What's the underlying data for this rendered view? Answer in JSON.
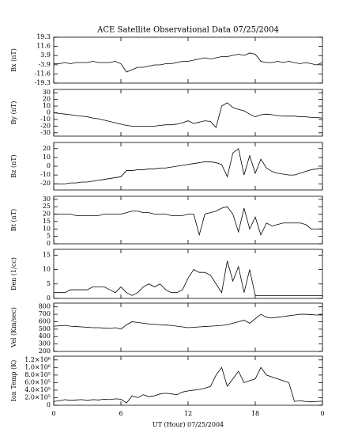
{
  "chart_data": [
    {
      "type": "line",
      "title": "ACE Satellite Observational Data   07/25/2004",
      "ylabel": "Bx (nT)",
      "color": "#000000",
      "x": [
        0,
        0.5,
        1,
        1.5,
        2,
        2.5,
        3,
        3.5,
        4,
        4.5,
        5,
        5.5,
        6,
        6.5,
        7,
        7.5,
        8,
        8.5,
        9,
        9.5,
        10,
        10.5,
        11,
        11.5,
        12,
        12.5,
        13,
        13.5,
        14,
        14.5,
        15,
        15.5,
        16,
        16.5,
        17,
        17.5,
        18,
        18.5,
        19,
        19.5,
        20,
        20.5,
        21,
        21.5,
        22,
        22.5,
        23,
        23.5,
        24
      ],
      "values": [
        -3,
        -3,
        -2,
        -3,
        -2,
        -2,
        -2,
        -1,
        -2,
        -2,
        -2,
        -1,
        -3,
        -10,
        -8,
        -6,
        -6,
        -5,
        -4,
        -4,
        -3,
        -3,
        -2,
        -1,
        -1,
        0,
        1,
        2,
        1,
        2,
        3,
        3,
        4,
        5,
        4,
        6,
        5,
        -1,
        -2,
        -2,
        -1,
        -2,
        -1,
        -2,
        -3,
        -2,
        -3,
        -4,
        -2
      ],
      "xlim": [
        0,
        24
      ],
      "ylim": [
        -19.3,
        19.3
      ],
      "yticks": [
        -19.3,
        -11.6,
        -3.9,
        3.9,
        11.6,
        19.3
      ]
    },
    {
      "type": "line",
      "ylabel": "By (nT)",
      "color": "#000000",
      "x": [
        0,
        0.5,
        1,
        1.5,
        2,
        2.5,
        3,
        3.5,
        4,
        4.5,
        5,
        5.5,
        6,
        6.5,
        7,
        7.5,
        8,
        8.5,
        9,
        9.5,
        10,
        10.5,
        11,
        11.5,
        12,
        12.5,
        13,
        13.5,
        14,
        14.5,
        15,
        15.5,
        16,
        16.5,
        17,
        17.5,
        18,
        18.5,
        19,
        19.5,
        20,
        20.5,
        21,
        21.5,
        22,
        22.5,
        23,
        23.5,
        24
      ],
      "values": [
        0,
        -1,
        -2,
        -3,
        -4,
        -5,
        -6,
        -8,
        -9,
        -11,
        -13,
        -15,
        -17,
        -19,
        -20,
        -20,
        -20,
        -20,
        -20,
        -19,
        -18,
        -18,
        -17,
        -15,
        -12,
        -16,
        -14,
        -12,
        -13,
        -22,
        10,
        15,
        8,
        5,
        3,
        -2,
        -6,
        -3,
        -2,
        -3,
        -4,
        -5,
        -5,
        -5,
        -6,
        -6,
        -7,
        -7,
        -8
      ],
      "xlim": [
        0,
        24
      ],
      "ylim": [
        -35,
        35
      ],
      "yticks": [
        -30,
        -20,
        -10,
        0,
        10,
        20,
        30
      ]
    },
    {
      "type": "line",
      "ylabel": "Bz (nT)",
      "color": "#000000",
      "x": [
        0,
        0.5,
        1,
        1.5,
        2,
        2.5,
        3,
        3.5,
        4,
        4.5,
        5,
        5.5,
        6,
        6.5,
        7,
        7.5,
        8,
        8.5,
        9,
        9.5,
        10,
        10.5,
        11,
        11.5,
        12,
        12.5,
        13,
        13.5,
        14,
        14.5,
        15,
        15.5,
        16,
        16.5,
        17,
        17.5,
        18,
        18.5,
        19,
        19.5,
        20,
        20.5,
        21,
        21.5,
        22,
        22.5,
        23,
        23.5,
        24
      ],
      "values": [
        -20,
        -20,
        -20,
        -19,
        -19,
        -18,
        -18,
        -17,
        -16,
        -15,
        -14,
        -13,
        -12,
        -5,
        -5,
        -4,
        -4,
        -3,
        -3,
        -2,
        -2,
        -1,
        0,
        1,
        2,
        3,
        4,
        5,
        5,
        4,
        2,
        -12,
        15,
        20,
        -10,
        12,
        -8,
        8,
        -2,
        -6,
        -8,
        -9,
        -10,
        -10,
        -8,
        -6,
        -4,
        -3,
        -2
      ],
      "xlim": [
        0,
        24
      ],
      "ylim": [
        -27,
        27
      ],
      "yticks": [
        -20,
        -10,
        0,
        10,
        20
      ]
    },
    {
      "type": "line",
      "ylabel": "Bt (nT)",
      "color": "#000000",
      "x": [
        0,
        0.5,
        1,
        1.5,
        2,
        2.5,
        3,
        3.5,
        4,
        4.5,
        5,
        5.5,
        6,
        6.5,
        7,
        7.5,
        8,
        8.5,
        9,
        9.5,
        10,
        10.5,
        11,
        11.5,
        12,
        12.5,
        13,
        13.5,
        14,
        14.5,
        15,
        15.5,
        16,
        16.5,
        17,
        17.5,
        18,
        18.5,
        19,
        19.5,
        20,
        20.5,
        21,
        21.5,
        22,
        22.5,
        23,
        23.5,
        24
      ],
      "values": [
        20,
        20,
        20,
        20,
        19,
        19,
        19,
        19,
        19,
        20,
        20,
        20,
        20,
        21,
        22,
        22,
        21,
        21,
        20,
        20,
        20,
        19,
        19,
        19,
        20,
        20,
        6,
        20,
        21,
        22,
        24,
        25,
        20,
        8,
        24,
        10,
        18,
        6,
        14,
        12,
        13,
        14,
        14,
        14,
        14,
        13,
        10,
        10,
        10
      ],
      "xlim": [
        0,
        24
      ],
      "ylim": [
        0,
        32
      ],
      "yticks": [
        0,
        5,
        10,
        15,
        20,
        25,
        30
      ]
    },
    {
      "type": "line",
      "ylabel": "Den (1/cc)",
      "color": "#000000",
      "x": [
        0,
        0.5,
        1,
        1.5,
        2,
        2.5,
        3,
        3.5,
        4,
        4.5,
        5,
        5.5,
        6,
        6.5,
        7,
        7.5,
        8,
        8.5,
        9,
        9.5,
        10,
        10.5,
        11,
        11.5,
        12,
        12.5,
        13,
        13.5,
        14,
        14.5,
        15,
        15.5,
        16,
        16.5,
        17,
        17.5,
        18,
        18.5,
        19,
        19.5,
        20,
        20.5,
        21,
        21.5,
        22,
        22.5,
        23,
        23.5,
        24
      ],
      "values": [
        2,
        2,
        2,
        3,
        3,
        3,
        3,
        4,
        4,
        4,
        3,
        2,
        4,
        2,
        1,
        2,
        4,
        5,
        4,
        5,
        3,
        2,
        2,
        3,
        7,
        10,
        9,
        9,
        8,
        5,
        2,
        13,
        6,
        11,
        2,
        10,
        1,
        1,
        1,
        1,
        1,
        1,
        1,
        1,
        1,
        1,
        1,
        1,
        1
      ],
      "xlim": [
        0,
        24
      ],
      "ylim": [
        0,
        17
      ],
      "yticks": [
        0,
        5,
        10,
        15
      ]
    },
    {
      "type": "line",
      "ylabel": "Vel (Km/sec)",
      "color": "#000000",
      "x": [
        0,
        0.5,
        1,
        1.5,
        2,
        2.5,
        3,
        3.5,
        4,
        4.5,
        5,
        5.5,
        6,
        6.5,
        7,
        7.5,
        8,
        8.5,
        9,
        9.5,
        10,
        10.5,
        11,
        11.5,
        12,
        12.5,
        13,
        13.5,
        14,
        14.5,
        15,
        15.5,
        16,
        16.5,
        17,
        17.5,
        18,
        18.5,
        19,
        19.5,
        20,
        20.5,
        21,
        21.5,
        22,
        22.5,
        23,
        23.5,
        24
      ],
      "values": [
        540,
        545,
        550,
        540,
        535,
        530,
        525,
        520,
        520,
        515,
        510,
        520,
        500,
        560,
        600,
        590,
        580,
        570,
        565,
        560,
        555,
        550,
        540,
        530,
        520,
        525,
        530,
        535,
        540,
        545,
        550,
        560,
        580,
        600,
        620,
        580,
        640,
        700,
        660,
        650,
        660,
        670,
        680,
        690,
        700,
        700,
        695,
        690,
        690
      ],
      "xlim": [
        0,
        24
      ],
      "ylim": [
        200,
        850
      ],
      "yticks": [
        200,
        300,
        400,
        500,
        600,
        700,
        800
      ]
    },
    {
      "type": "line",
      "ylabel": "Ion Temp (K)",
      "xlabel": "UT (Hour)   07/25/2004",
      "color": "#000000",
      "x": [
        0,
        0.5,
        1,
        1.5,
        2,
        2.5,
        3,
        3.5,
        4,
        4.5,
        5,
        5.5,
        6,
        6.5,
        7,
        7.5,
        8,
        8.5,
        9,
        9.5,
        10,
        10.5,
        11,
        11.5,
        12,
        12.5,
        13,
        13.5,
        14,
        14.5,
        15,
        15.5,
        16,
        16.5,
        17,
        17.5,
        18,
        18.5,
        19,
        19.5,
        20,
        20.5,
        21,
        21.5,
        22,
        22.5,
        23,
        23.5,
        24
      ],
      "values": [
        100000,
        120000,
        150000,
        130000,
        140000,
        150000,
        130000,
        150000,
        140000,
        160000,
        150000,
        170000,
        160000,
        60000,
        250000,
        200000,
        280000,
        230000,
        250000,
        300000,
        320000,
        300000,
        280000,
        350000,
        380000,
        400000,
        420000,
        450000,
        500000,
        800000,
        1000000,
        500000,
        700000,
        900000,
        600000,
        650000,
        700000,
        1000000,
        800000,
        750000,
        700000,
        650000,
        600000,
        100000,
        120000,
        100000,
        90000,
        100000,
        110000
      ],
      "xlim": [
        0,
        24
      ],
      "ylim": [
        0,
        1300000
      ],
      "yticks": [
        0,
        {
          "value": 200000,
          "label": "2.0×10⁵"
        },
        {
          "value": 400000,
          "label": "4.0×10⁵"
        },
        {
          "value": 600000,
          "label": "6.0×10⁵"
        },
        {
          "value": 800000,
          "label": "8.0×10⁵"
        },
        {
          "value": 1000000,
          "label": "1.0×10⁶"
        },
        {
          "value": 1200000,
          "label": "1.2×10⁶"
        }
      ],
      "xticks": [
        0,
        6,
        12,
        18,
        {
          "value": 24,
          "label": "0"
        }
      ]
    }
  ]
}
